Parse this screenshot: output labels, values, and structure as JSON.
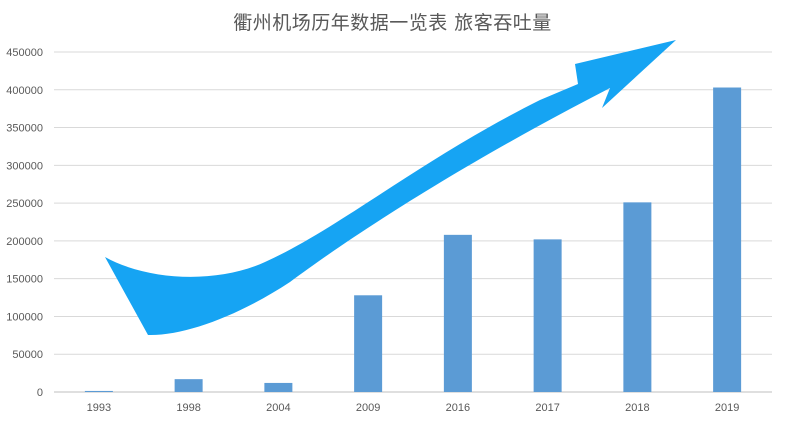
{
  "chart_data": {
    "type": "bar",
    "title": "衢州机场历年数据一览表 旅客吞吐量",
    "xlabel": "",
    "ylabel": "",
    "categories": [
      "1993",
      "1998",
      "2004",
      "2009",
      "2016",
      "2017",
      "2018",
      "2019"
    ],
    "values": [
      1400,
      17000,
      12000,
      128000,
      208000,
      202000,
      251000,
      403000
    ],
    "ylim": [
      0,
      450000
    ],
    "yticks": [
      0,
      50000,
      100000,
      150000,
      200000,
      250000,
      300000,
      350000,
      400000,
      450000
    ],
    "ytick_labels": [
      "0",
      "50000",
      "100000",
      "150000",
      "200000",
      "250000",
      "300000",
      "350000",
      "400000",
      "450000"
    ],
    "grid": true,
    "legend": null,
    "bar_color": "#5b9bd5",
    "annotations": [
      {
        "type": "curved-arrow",
        "description": "large upward trend arrow",
        "color": "#16a4f3"
      }
    ]
  }
}
